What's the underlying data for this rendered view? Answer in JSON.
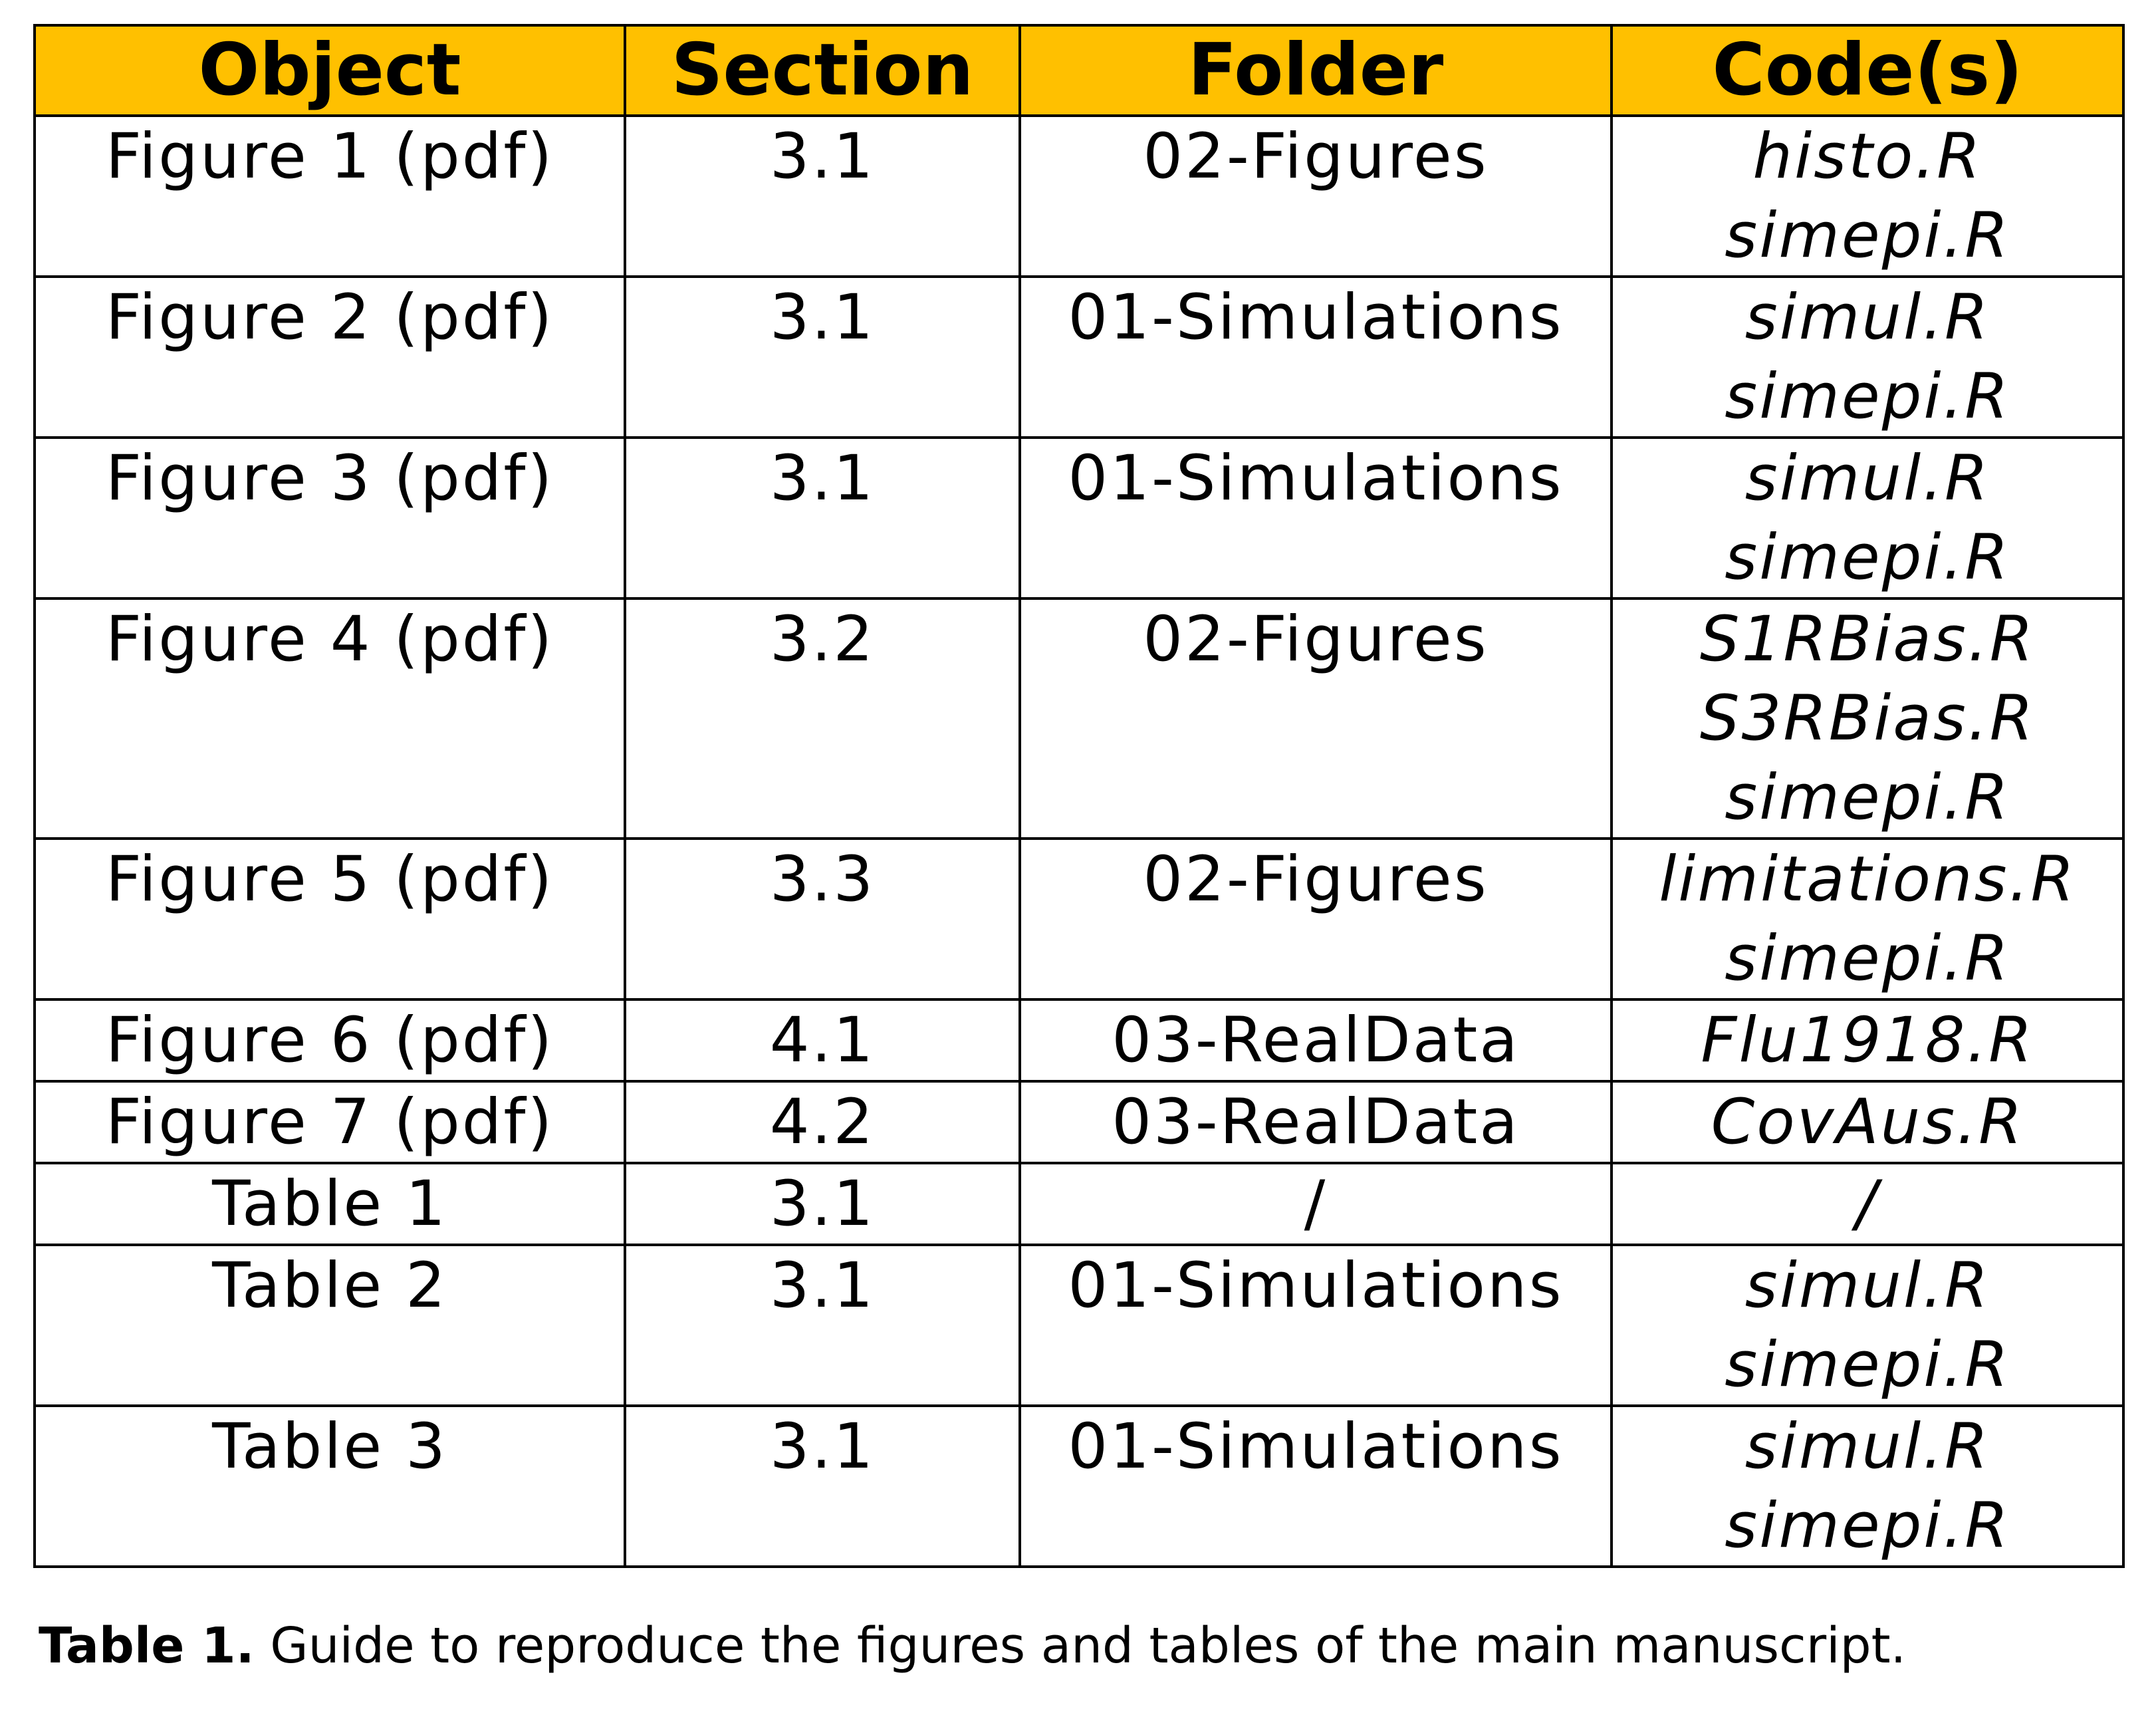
{
  "table": {
    "headers": [
      "Object",
      "Section",
      "Folder",
      "Code(s)"
    ],
    "rows": [
      {
        "object": "Figure 1 (pdf)",
        "section": "3.1",
        "folder": "02-Figures",
        "codes": [
          "histo.R",
          "simepi.R"
        ]
      },
      {
        "object": "Figure 2 (pdf)",
        "section": "3.1",
        "folder": "01-Simulations",
        "codes": [
          "simul.R",
          "simepi.R"
        ]
      },
      {
        "object": "Figure 3 (pdf)",
        "section": "3.1",
        "folder": "01-Simulations",
        "codes": [
          "simul.R",
          "simepi.R"
        ]
      },
      {
        "object": "Figure 4 (pdf)",
        "section": "3.2",
        "folder": "02-Figures",
        "codes": [
          "S1RBias.R",
          "S3RBias.R",
          "simepi.R"
        ]
      },
      {
        "object": "Figure 5 (pdf)",
        "section": "3.3",
        "folder": "02-Figures",
        "codes": [
          "limitations.R",
          "simepi.R"
        ]
      },
      {
        "object": "Figure 6 (pdf)",
        "section": "4.1",
        "folder": "03-RealData",
        "codes": [
          "Flu1918.R"
        ]
      },
      {
        "object": "Figure 7 (pdf)",
        "section": "4.2",
        "folder": "03-RealData",
        "codes": [
          "CovAus.R"
        ]
      },
      {
        "object": "Table 1",
        "section": "3.1",
        "folder": "/",
        "codes": [
          "/"
        ]
      },
      {
        "object": "Table 2",
        "section": "3.1",
        "folder": "01-Simulations",
        "codes": [
          "simul.R",
          "simepi.R"
        ]
      },
      {
        "object": "Table 3",
        "section": "3.1",
        "folder": "01-Simulations",
        "codes": [
          "simul.R",
          "simepi.R"
        ]
      }
    ]
  },
  "caption": {
    "label": "Table 1.",
    "text": " Guide to reproduce the figures and tables of the main manuscript."
  },
  "colors": {
    "header_background": "#ffc000",
    "border": "#000000"
  }
}
